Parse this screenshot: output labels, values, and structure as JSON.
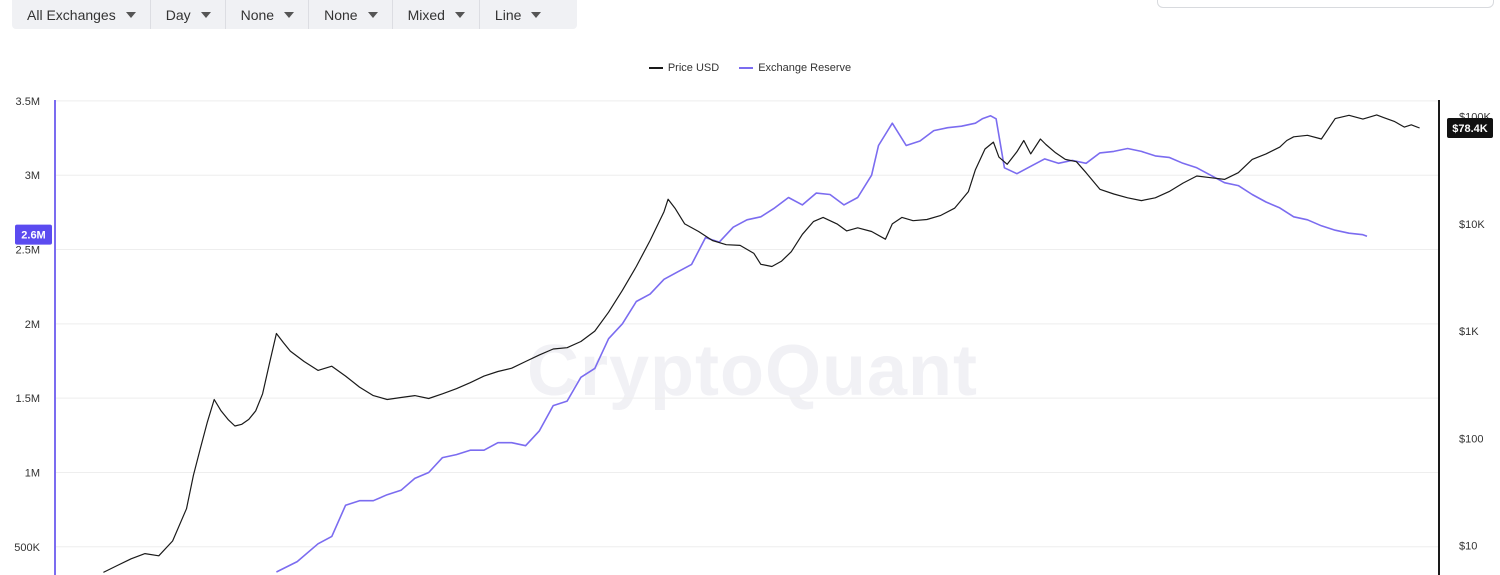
{
  "toolbar": {
    "items": [
      {
        "label": "All Exchanges"
      },
      {
        "label": "Day"
      },
      {
        "label": "None"
      },
      {
        "label": "None"
      },
      {
        "label": "Mixed"
      },
      {
        "label": "Line"
      }
    ]
  },
  "watermark": "CryptoQuant",
  "colors": {
    "price": "#1a1a1a",
    "reserve": "#7b6cf0",
    "badge_reserve": "#5b4bf0",
    "badge_price": "#111111",
    "grid": "#eeeeee"
  },
  "chart_data": {
    "type": "line",
    "legend_position": "top-center",
    "grid": true,
    "left_axis": {
      "ticks": [
        {
          "value": 500000,
          "label": "500K"
        },
        {
          "value": 1000000,
          "label": "1M"
        },
        {
          "value": 1500000,
          "label": "1.5M"
        },
        {
          "value": 2000000,
          "label": "2M"
        },
        {
          "value": 2500000,
          "label": "2.5M"
        },
        {
          "value": 3000000,
          "label": "3M"
        },
        {
          "value": 3500000,
          "label": "3.5M"
        }
      ],
      "range": [
        310000,
        3560000
      ],
      "current_label": "2.6M",
      "current_value": 2600000
    },
    "right_axis": {
      "scale": "log",
      "ticks": [
        {
          "value": 10,
          "label": "$10"
        },
        {
          "value": 100,
          "label": "$100"
        },
        {
          "value": 1000,
          "label": "$1K"
        },
        {
          "value": 10000,
          "label": "$10K"
        },
        {
          "value": 100000,
          "label": "$100K"
        }
      ],
      "range": [
        5.3,
        170000
      ],
      "current_label": "$78.4K",
      "current_value": 78400
    },
    "x_range": [
      0,
      100
    ],
    "series": [
      {
        "name": "Price USD",
        "axis": "right",
        "points": [
          [
            3.5,
            5.6
          ],
          [
            4.5,
            6.5
          ],
          [
            5.5,
            7.5
          ],
          [
            6.5,
            8.4
          ],
          [
            7.5,
            8.0
          ],
          [
            8.5,
            11
          ],
          [
            9.5,
            22
          ],
          [
            10,
            45
          ],
          [
            10.5,
            80
          ],
          [
            11,
            140
          ],
          [
            11.5,
            230
          ],
          [
            12,
            180
          ],
          [
            12.5,
            150
          ],
          [
            13,
            130
          ],
          [
            13.5,
            135
          ],
          [
            14,
            150
          ],
          [
            14.5,
            180
          ],
          [
            15,
            260
          ],
          [
            15.5,
            500
          ],
          [
            16,
            950
          ],
          [
            16.5,
            780
          ],
          [
            17,
            650
          ],
          [
            18,
            520
          ],
          [
            19,
            430
          ],
          [
            20,
            470
          ],
          [
            21,
            380
          ],
          [
            22,
            300
          ],
          [
            23,
            250
          ],
          [
            24,
            230
          ],
          [
            25,
            240
          ],
          [
            26,
            250
          ],
          [
            27,
            235
          ],
          [
            28,
            260
          ],
          [
            29,
            290
          ],
          [
            30,
            330
          ],
          [
            31,
            380
          ],
          [
            32,
            420
          ],
          [
            33,
            450
          ],
          [
            34,
            520
          ],
          [
            35,
            600
          ],
          [
            36,
            680
          ],
          [
            37,
            700
          ],
          [
            38,
            800
          ],
          [
            39,
            1000
          ],
          [
            40,
            1500
          ],
          [
            41,
            2400
          ],
          [
            42,
            4000
          ],
          [
            43,
            7000
          ],
          [
            44,
            13000
          ],
          [
            44.3,
            17000
          ],
          [
            44.8,
            14000
          ],
          [
            45.5,
            10000
          ],
          [
            46.5,
            8500
          ],
          [
            47.5,
            7000
          ],
          [
            48.5,
            6400
          ],
          [
            49.5,
            6300
          ],
          [
            50.5,
            5300
          ],
          [
            51,
            4200
          ],
          [
            51.8,
            4000
          ],
          [
            52.5,
            4500
          ],
          [
            53.2,
            5500
          ],
          [
            54,
            8000
          ],
          [
            54.8,
            10500
          ],
          [
            55.5,
            11500
          ],
          [
            56.5,
            10000
          ],
          [
            57.2,
            8600
          ],
          [
            58,
            9200
          ],
          [
            59,
            8500
          ],
          [
            60,
            7200
          ],
          [
            60.5,
            10000
          ],
          [
            61.2,
            11500
          ],
          [
            62,
            10700
          ],
          [
            63,
            11000
          ],
          [
            64,
            12000
          ],
          [
            65,
            14000
          ],
          [
            66,
            20000
          ],
          [
            66.5,
            32000
          ],
          [
            67.2,
            50000
          ],
          [
            67.8,
            58000
          ],
          [
            68.2,
            42000
          ],
          [
            68.8,
            36000
          ],
          [
            69.5,
            47000
          ],
          [
            70,
            60000
          ],
          [
            70.5,
            45000
          ],
          [
            71.2,
            62000
          ],
          [
            71.6,
            55000
          ],
          [
            72.3,
            46000
          ],
          [
            73,
            40000
          ],
          [
            73.8,
            38000
          ],
          [
            74.5,
            30000
          ],
          [
            75.5,
            21000
          ],
          [
            76.5,
            19000
          ],
          [
            77.5,
            17500
          ],
          [
            78.5,
            16500
          ],
          [
            79.5,
            17500
          ],
          [
            80.5,
            20000
          ],
          [
            81.5,
            24000
          ],
          [
            82.5,
            28000
          ],
          [
            83.5,
            27000
          ],
          [
            84.5,
            26000
          ],
          [
            85.5,
            30000
          ],
          [
            86.5,
            40000
          ],
          [
            87.5,
            45000
          ],
          [
            88.5,
            52000
          ],
          [
            89,
            60000
          ],
          [
            89.5,
            65000
          ],
          [
            90.5,
            67000
          ],
          [
            91.5,
            62000
          ],
          [
            92.5,
            96000
          ],
          [
            93.5,
            103000
          ],
          [
            94.5,
            95000
          ],
          [
            95.5,
            104000
          ],
          [
            96,
            98000
          ],
          [
            96.8,
            90000
          ],
          [
            97.5,
            80000
          ],
          [
            98,
            84000
          ],
          [
            98.6,
            78400
          ]
        ]
      },
      {
        "name": "Exchange Reserve",
        "axis": "left",
        "points": [
          [
            16,
            330000
          ],
          [
            17.5,
            400000
          ],
          [
            19,
            520000
          ],
          [
            20,
            570000
          ],
          [
            21,
            780000
          ],
          [
            22,
            810000
          ],
          [
            23,
            810000
          ],
          [
            24,
            850000
          ],
          [
            25,
            880000
          ],
          [
            26,
            960000
          ],
          [
            27,
            1000000
          ],
          [
            28,
            1100000
          ],
          [
            29,
            1120000
          ],
          [
            30,
            1150000
          ],
          [
            31,
            1150000
          ],
          [
            32,
            1200000
          ],
          [
            33,
            1200000
          ],
          [
            34,
            1180000
          ],
          [
            35,
            1280000
          ],
          [
            36,
            1450000
          ],
          [
            37,
            1480000
          ],
          [
            38,
            1640000
          ],
          [
            39,
            1700000
          ],
          [
            40,
            1900000
          ],
          [
            41,
            2000000
          ],
          [
            42,
            2150000
          ],
          [
            43,
            2200000
          ],
          [
            44,
            2300000
          ],
          [
            45,
            2350000
          ],
          [
            46,
            2400000
          ],
          [
            47,
            2580000
          ],
          [
            48,
            2550000
          ],
          [
            49,
            2650000
          ],
          [
            50,
            2700000
          ],
          [
            51,
            2720000
          ],
          [
            52,
            2780000
          ],
          [
            53,
            2850000
          ],
          [
            54,
            2800000
          ],
          [
            55,
            2880000
          ],
          [
            56,
            2870000
          ],
          [
            57,
            2800000
          ],
          [
            58,
            2850000
          ],
          [
            59,
            3000000
          ],
          [
            59.5,
            3200000
          ],
          [
            60.5,
            3350000
          ],
          [
            61.5,
            3200000
          ],
          [
            62.5,
            3230000
          ],
          [
            63.5,
            3300000
          ],
          [
            64.5,
            3320000
          ],
          [
            65.5,
            3330000
          ],
          [
            66.5,
            3350000
          ],
          [
            67,
            3380000
          ],
          [
            67.6,
            3400000
          ],
          [
            68,
            3380000
          ],
          [
            68.6,
            3050000
          ],
          [
            69.5,
            3010000
          ],
          [
            70.5,
            3060000
          ],
          [
            71.5,
            3110000
          ],
          [
            72.5,
            3080000
          ],
          [
            73.5,
            3100000
          ],
          [
            74.5,
            3080000
          ],
          [
            75.5,
            3150000
          ],
          [
            76.5,
            3160000
          ],
          [
            77.5,
            3180000
          ],
          [
            78.5,
            3160000
          ],
          [
            79.5,
            3130000
          ],
          [
            80.5,
            3120000
          ],
          [
            81.5,
            3080000
          ],
          [
            82.5,
            3050000
          ],
          [
            83.5,
            3000000
          ],
          [
            84.5,
            2950000
          ],
          [
            85.5,
            2930000
          ],
          [
            86.5,
            2870000
          ],
          [
            87.5,
            2820000
          ],
          [
            88.5,
            2780000
          ],
          [
            89.5,
            2720000
          ],
          [
            90.5,
            2700000
          ],
          [
            91.5,
            2660000
          ],
          [
            92.5,
            2630000
          ],
          [
            93.5,
            2610000
          ],
          [
            94.5,
            2600000
          ],
          [
            94.8,
            2590000
          ]
        ]
      }
    ]
  }
}
